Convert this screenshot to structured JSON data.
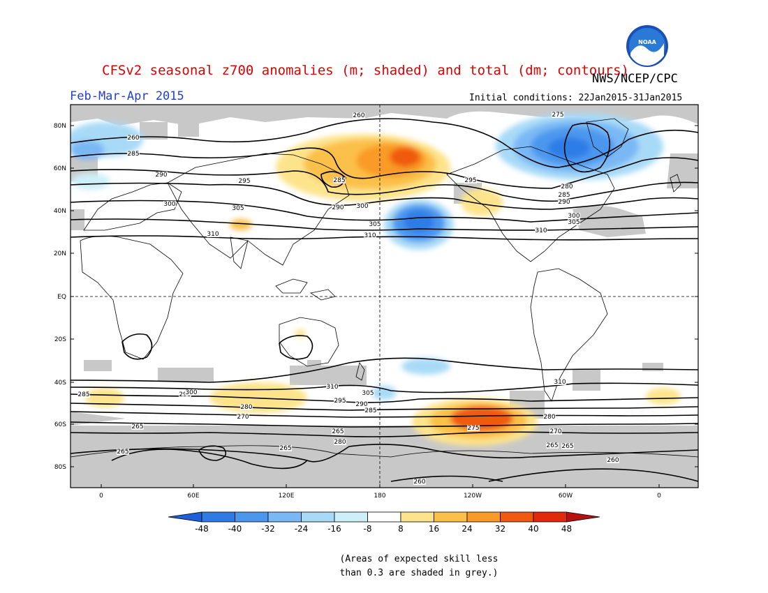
{
  "title": "CFSv2 seasonal z700 anomalies (m; shaded) and total (dm; contours)",
  "agency": "NWS/NCEP/CPC",
  "season": "Feb-Mar-Apr 2015",
  "initial_conditions": "Initial conditions: 22Jan2015-31Jan2015",
  "footnote": "(Areas of expected skill less\nthan 0.3 are shaded in grey.)",
  "logo_text": "NOAA",
  "lat_labels": [
    "80N",
    "60N",
    "40N",
    "20N",
    "EQ",
    "20S",
    "40S",
    "60S",
    "80S"
  ],
  "lon_labels": [
    "0",
    "60E",
    "120E",
    "180",
    "120W",
    "60W",
    "0"
  ],
  "colorbar": {
    "labels": [
      "-48",
      "-40",
      "-32",
      "-24",
      "-16",
      "-8",
      "8",
      "16",
      "24",
      "32",
      "40",
      "48"
    ],
    "colors": [
      "#1f5fd8",
      "#2e7be6",
      "#4b97ee",
      "#7ab8f5",
      "#a8daf7",
      "#cdf0f8",
      "#ffffff",
      "#fde48c",
      "#fbc04a",
      "#f99b28",
      "#f05a10",
      "#e02a0a",
      "#b80f0f"
    ]
  },
  "contour_labels": [
    "260",
    "260",
    "260",
    "260",
    "265",
    "265",
    "265",
    "265",
    "265",
    "265",
    "270",
    "270",
    "275",
    "275",
    "280",
    "280",
    "280",
    "280",
    "285",
    "285",
    "285",
    "285",
    "285",
    "290",
    "290",
    "290",
    "290",
    "290",
    "295",
    "295",
    "295",
    "300",
    "300",
    "300",
    "300",
    "305",
    "305",
    "305",
    "305",
    "310",
    "310",
    "310",
    "310",
    "310"
  ],
  "colors": {
    "title": "#e00000",
    "season": "#1f3fd6",
    "grey_skill": "#c8c8c8"
  }
}
